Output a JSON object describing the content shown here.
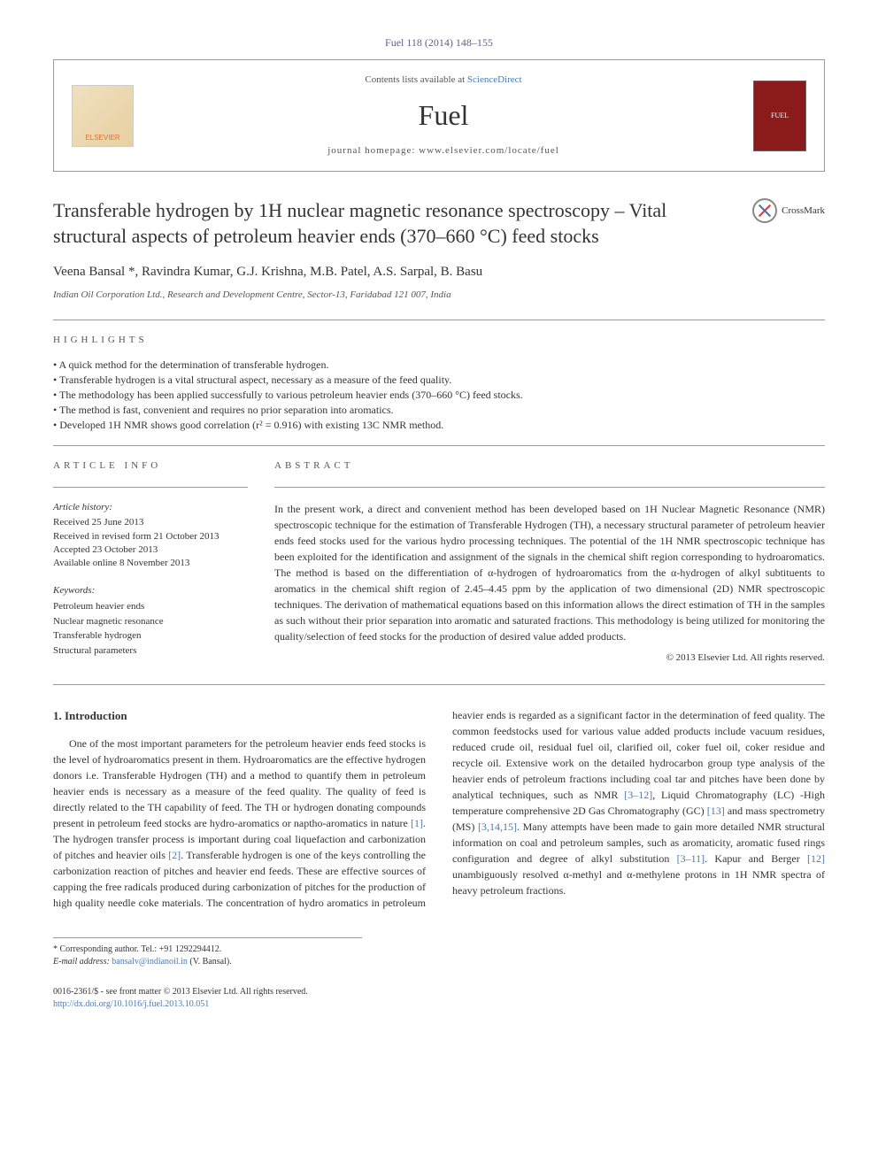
{
  "header": {
    "citation": "Fuel 118 (2014) 148–155",
    "contents_prefix": "Contents lists available at ",
    "contents_link": "ScienceDirect",
    "journal": "Fuel",
    "homepage_label": "journal homepage: www.elsevier.com/locate/fuel",
    "publisher_name": "ELSEVIER",
    "cover_text": "FUEL"
  },
  "crossmark": {
    "label": "CrossMark"
  },
  "title": "Transferable hydrogen by 1H nuclear magnetic resonance spectroscopy – Vital structural aspects of petroleum heavier ends (370–660 °C) feed stocks",
  "authors": "Veena Bansal *, Ravindra Kumar, G.J. Krishna, M.B. Patel, A.S. Sarpal, B. Basu",
  "affiliation": "Indian Oil Corporation Ltd., Research and Development Centre, Sector-13, Faridabad 121 007, India",
  "highlights": {
    "label": "HIGHLIGHTS",
    "items": [
      "A quick method for the determination of transferable hydrogen.",
      "Transferable hydrogen is a vital structural aspect, necessary as a measure of the feed quality.",
      "The methodology has been applied successfully to various petroleum heavier ends (370–660 °C) feed stocks.",
      "The method is fast, convenient and requires no prior separation into aromatics.",
      "Developed 1H NMR shows good correlation (r² = 0.916) with existing 13C NMR method."
    ]
  },
  "article_info": {
    "label": "ARTICLE INFO",
    "history_heading": "Article history:",
    "received": "Received 25 June 2013",
    "revised": "Received in revised form 21 October 2013",
    "accepted": "Accepted 23 October 2013",
    "available": "Available online 8 November 2013",
    "keywords_heading": "Keywords:",
    "keywords": [
      "Petroleum heavier ends",
      "Nuclear magnetic resonance",
      "Transferable hydrogen",
      "Structural parameters"
    ]
  },
  "abstract": {
    "label": "ABSTRACT",
    "text": "In the present work, a direct and convenient method has been developed based on 1H Nuclear Magnetic Resonance (NMR) spectroscopic technique for the estimation of Transferable Hydrogen (TH), a necessary structural parameter of petroleum heavier ends feed stocks used for the various hydro processing techniques. The potential of the 1H NMR spectroscopic technique has been exploited for the identification and assignment of the signals in the chemical shift region corresponding to hydroaromatics. The method is based on the differentiation of α-hydrogen of hydroaromatics from the α-hydrogen of alkyl subtituents to aromatics in the chemical shift region of 2.45–4.45 ppm by the application of two dimensional (2D) NMR spectroscopic techniques. The derivation of mathematical equations based on this information allows the direct estimation of TH in the samples as such without their prior separation into aromatic and saturated fractions. This methodology is being utilized for monitoring the quality/selection of feed stocks for the production of desired value added products.",
    "copyright": "© 2013 Elsevier Ltd. All rights reserved."
  },
  "body": {
    "section_heading": "1. Introduction",
    "para1_a": "One of the most important parameters for the petroleum heavier ends feed stocks is the level of hydroaromatics present in them. Hydroaromatics are the effective hydrogen donors i.e. Transferable Hydrogen (TH) and a method to quantify them in petroleum heavier ends is necessary as a measure of the feed quality. The quality of feed is directly related to the TH capability of feed. The TH or hydrogen donating compounds present in petroleum feed stocks are hydro-aromatics or naptho-aromatics in nature ",
    "cite1": "[1]",
    "para1_b": ". The hydrogen transfer process is important during coal liquefaction and carbonization of pitches and heavier oils ",
    "cite2": "[2]",
    "para1_c": ". Transferable hydrogen is one of the keys controlling the carbonization reaction of pitches and heavier end feeds. These are effective ",
    "para2_a": "sources of capping the free radicals produced during carbonization of pitches for the production of high quality needle coke materials. The concentration of hydro aromatics in petroleum heavier ends is regarded as a significant factor in the determination of feed quality. The common feedstocks used for various value added products include vacuum residues, reduced crude oil, residual fuel oil, clarified oil, coker fuel oil, coker residue and recycle oil. Extensive work on the detailed hydrocarbon group type analysis of the heavier ends of petroleum fractions including coal tar and pitches have been done by analytical techniques, such as NMR ",
    "cite3": "[3–12]",
    "para2_b": ", Liquid Chromatography (LC) -High temperature comprehensive 2D Gas Chromatography (GC) ",
    "cite4": "[13]",
    "para2_c": " and mass spectrometry (MS) ",
    "cite5": "[3,14,15]",
    "para2_d": ". Many attempts have been made to gain more detailed NMR structural information on coal and petroleum samples, such as aromaticity, aromatic fused rings configuration and degree of alkyl substitution ",
    "cite6": "[3–11]",
    "para2_e": ". Kapur and Berger ",
    "cite7": "[12]",
    "para2_f": " unambiguously resolved α-methyl and α-methylene protons in 1H NMR spectra of heavy petroleum fractions."
  },
  "footnotes": {
    "corresponding": "* Corresponding author. Tel.: +91 1292294412.",
    "email_label": "E-mail address: ",
    "email": "bansalv@indianoil.in",
    "email_name": " (V. Bansal)."
  },
  "footer": {
    "issn": "0016-2361/$ - see front matter © 2013 Elsevier Ltd. All rights reserved.",
    "doi": "http://dx.doi.org/10.1016/j.fuel.2013.10.051"
  },
  "colors": {
    "link": "#4a7ab0",
    "header_ref": "#6a5b8c",
    "cover_bg": "#8b1a1a",
    "text": "#333333"
  }
}
